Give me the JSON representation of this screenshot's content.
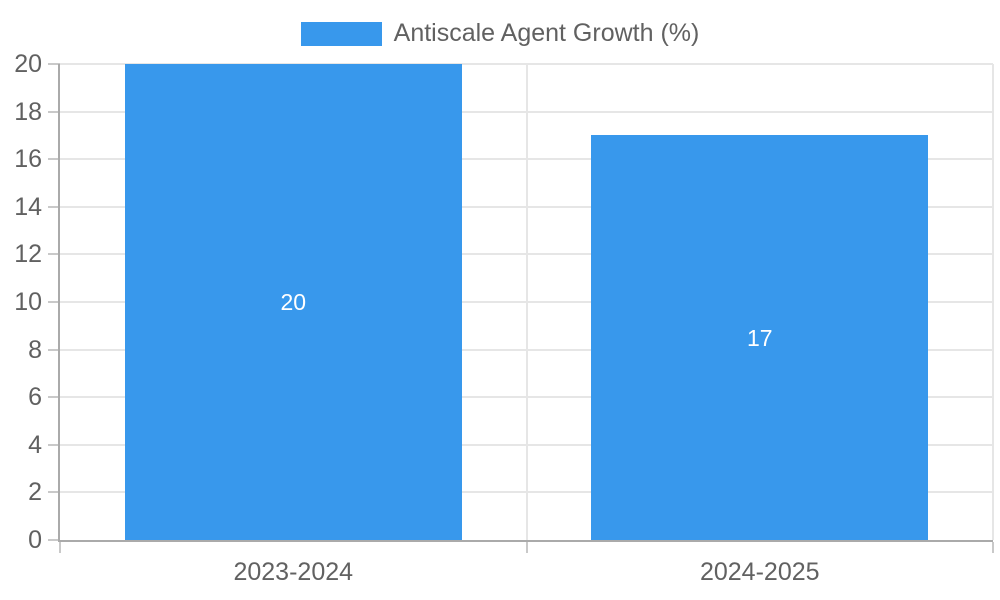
{
  "legend": {
    "label": "Antiscale Agent Growth (%)"
  },
  "chart_data": {
    "type": "bar",
    "title": "",
    "legend_position": "top",
    "categories": [
      "2023-2024",
      "2024-2025"
    ],
    "series": [
      {
        "name": "Antiscale Agent Growth (%)",
        "values": [
          20,
          17
        ]
      }
    ],
    "value_labels": [
      "20",
      "17"
    ],
    "ylabel": "",
    "xlabel": "",
    "ylim": [
      0,
      20
    ],
    "yticks": [
      0,
      2,
      4,
      6,
      8,
      10,
      12,
      14,
      16,
      18,
      20
    ],
    "grid": true,
    "colors": {
      "bar": "#3898ec",
      "axis_text": "#616161",
      "bar_label": "#ffffff",
      "axis_line": "#aaaaaa",
      "gridline": "#e6e6e6",
      "tick": "#c9c9c9"
    }
  }
}
